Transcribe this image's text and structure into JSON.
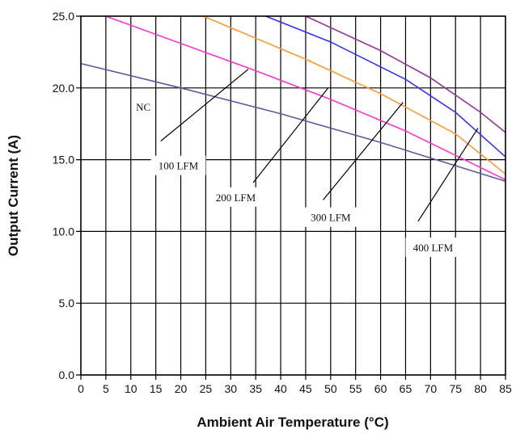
{
  "chart_data": {
    "type": "line",
    "xlabel": "Ambient Air Temperature (°C)",
    "ylabel": "Output Current (A)",
    "xlim": [
      0,
      85
    ],
    "ylim": [
      0,
      25
    ],
    "x_ticks": [
      0,
      5,
      10,
      15,
      20,
      25,
      30,
      35,
      40,
      45,
      50,
      55,
      60,
      65,
      70,
      75,
      80,
      85
    ],
    "x_tick_labels": [
      "0",
      "5",
      "10",
      "15",
      "20",
      "25",
      "30",
      "35",
      "40",
      "45",
      "50",
      "55",
      "60",
      "65",
      "70",
      "75",
      "80",
      "85"
    ],
    "y_ticks": [
      0,
      5,
      10,
      15,
      20,
      25
    ],
    "y_tick_labels": [
      "0.0",
      "5.0",
      "10.0",
      "15.0",
      "20.0",
      "25.0"
    ],
    "grid": true,
    "series": [
      {
        "name": "NC",
        "color": "#5a5a9e",
        "x": [
          0,
          20,
          40,
          60,
          85
        ],
        "y": [
          21.7,
          20.0,
          18.2,
          16.2,
          13.5
        ]
      },
      {
        "name": "100 LFM",
        "color": "#ff33cc",
        "x": [
          5,
          35,
          50,
          65,
          85
        ],
        "y": [
          25.0,
          21.2,
          19.2,
          17.0,
          13.6
        ]
      },
      {
        "name": "200 LFM",
        "color": "#ff9933",
        "x": [
          24.5,
          45,
          60,
          75,
          85
        ],
        "y": [
          25.0,
          22.0,
          19.6,
          16.8,
          14.0
        ]
      },
      {
        "name": "300 LFM",
        "color": "#3333ff",
        "x": [
          37,
          50,
          65,
          75,
          85
        ],
        "y": [
          25.0,
          23.2,
          20.6,
          18.3,
          15.2
        ]
      },
      {
        "name": "400 LFM",
        "color": "#993399",
        "x": [
          45,
          60,
          70,
          80,
          85
        ],
        "y": [
          25.0,
          22.6,
          20.7,
          18.3,
          16.9
        ]
      }
    ],
    "annotations": [
      {
        "text": "NC",
        "x": 12.5,
        "y": 18.7
      },
      {
        "text": "100 LFM",
        "x": 19.5,
        "y": 14.6,
        "arrow_from": [
          16,
          16.3
        ],
        "arrow_to": [
          33.5,
          21.3
        ]
      },
      {
        "text": "200 LFM",
        "x": 31,
        "y": 12.4,
        "arrow_from": [
          34.5,
          13.4
        ],
        "arrow_to": [
          49.5,
          20.0
        ]
      },
      {
        "text": "300 LFM",
        "x": 50,
        "y": 11.0,
        "arrow_from": [
          48.5,
          12.2
        ],
        "arrow_to": [
          64.5,
          19.0
        ]
      },
      {
        "text": "400 LFM",
        "x": 70.5,
        "y": 8.9,
        "arrow_from": [
          67.5,
          10.7
        ],
        "arrow_to": [
          79.5,
          17.2
        ]
      }
    ]
  }
}
